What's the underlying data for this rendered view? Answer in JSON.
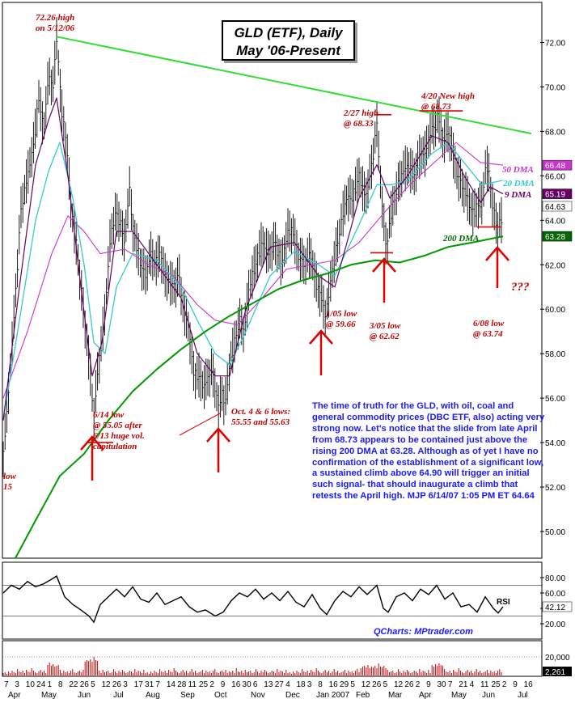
{
  "title_line1": "GLD (ETF), Daily",
  "title_line2": "May '06-Present",
  "annotations": {
    "high_0512": [
      "72.26 high",
      "on 5/12/06"
    ],
    "high_0227": [
      "2/27 high",
      "@ 68.33"
    ],
    "high_0420": [
      "4/20 New high",
      "@ 68.73"
    ],
    "low_0614": [
      "6/14 low",
      "@ 55.05 after",
      "6/13 huge vol.",
      "capitulation"
    ],
    "low_oct": [
      "Oct. 4 & 6 lows:",
      "55.55 and 55.63"
    ],
    "low_0105": [
      "1/05 low",
      "@ 59.66"
    ],
    "low_0305": [
      "3/05 low",
      "@ 62.62"
    ],
    "low_0608": [
      "6/08 low",
      "@ 63.74"
    ],
    "left_cut": [
      "low",
      "15"
    ],
    "question": "???"
  },
  "ma_labels": {
    "dma50": "50 DMA",
    "dma20": "20 DMA",
    "dma9": "9 DMA",
    "dma200": "200 DMA"
  },
  "commentary": "The time of truth for the GLD, with oil, coal and general commodity prices (DBC ETF, also) acting very strong now. Let's notice that the slide from late April from 68.73 appears to be contained just above the rising 200 DMA at 63.28. Although as of yet I have no confirmation of the establishment of a significant low, a sustained climb above 64.90 will trigger an initial such signal- that should inaugurate a climb that retests the April high. MJP 6/14/07 1:05 PM ET 64.64",
  "footer_credit": "QCharts: MPtrader.com",
  "rsi_label": "RSI",
  "chart_data": {
    "type": "line",
    "title": "GLD (ETF), Daily May '06-Present",
    "price_axis": {
      "ylim": [
        48.8,
        73.8
      ],
      "ticks": [
        "50.00",
        "52.00",
        "54.00",
        "56.00",
        "58.00",
        "60.00",
        "62.00",
        "64.00",
        "66.00",
        "68.00",
        "70.00",
        "72.00"
      ]
    },
    "rsi_axis": {
      "ylim": [
        0,
        100
      ],
      "ticks": [
        "20.00",
        "40.00",
        "60.00",
        "80.00"
      ],
      "current": "42.12"
    },
    "volume_axis": {
      "ticks": [
        "20,000"
      ],
      "current": "2,261"
    },
    "price_tags": [
      {
        "value": 66.48,
        "label": "66.48",
        "color": "#cc33cc"
      },
      {
        "value": 65.19,
        "label": "65.19",
        "color": "#660066"
      },
      {
        "value": 64.63,
        "label": "64.63",
        "color": "#ffffff"
      },
      {
        "value": 63.28,
        "label": "63.28",
        "color": "#006600"
      }
    ],
    "x_day_labels": [
      "7",
      "3",
      "10",
      "24",
      "1",
      "8",
      "22",
      "26",
      "5",
      "12",
      "26",
      "3",
      "17",
      "31",
      "7",
      "14",
      "28",
      "11",
      "25",
      "2",
      "9",
      "16",
      "30",
      "6",
      "13",
      "27",
      "4",
      "18",
      "3",
      "8",
      "16",
      "29",
      "5",
      "12",
      "26",
      "5",
      "12",
      "26",
      "2",
      "9",
      "30",
      "7",
      "21",
      "4",
      "11",
      "25",
      "2",
      "9",
      "16"
    ],
    "x_month_labels": [
      "Apr",
      "May",
      "Jun",
      "Jul",
      "Aug",
      "Sep",
      "Oct",
      "Nov",
      "Dec",
      "Jan 2007",
      "Feb",
      "Mar",
      "Apr",
      "May",
      "Jun",
      "Jul"
    ],
    "price_path": [
      [
        0,
        53.5
      ],
      [
        6,
        56
      ],
      [
        14,
        60
      ],
      [
        22,
        64.5
      ],
      [
        30,
        66
      ],
      [
        38,
        67.5
      ],
      [
        44,
        69.5
      ],
      [
        50,
        68
      ],
      [
        56,
        70.5
      ],
      [
        62,
        70
      ],
      [
        66,
        72.26
      ],
      [
        72,
        69
      ],
      [
        78,
        67.5
      ],
      [
        84,
        64.5
      ],
      [
        90,
        63
      ],
      [
        96,
        61
      ],
      [
        102,
        59
      ],
      [
        108,
        57
      ],
      [
        112,
        55.05
      ],
      [
        116,
        57
      ],
      [
        120,
        58
      ],
      [
        126,
        60
      ],
      [
        132,
        63
      ],
      [
        138,
        64.3
      ],
      [
        144,
        64
      ],
      [
        150,
        63
      ],
      [
        156,
        65.5
      ],
      [
        160,
        63.7
      ],
      [
        164,
        63
      ],
      [
        170,
        62
      ],
      [
        176,
        61.5
      ],
      [
        182,
        62.5
      ],
      [
        188,
        62
      ],
      [
        194,
        62.5
      ],
      [
        200,
        61.5
      ],
      [
        206,
        61.2
      ],
      [
        212,
        61
      ],
      [
        218,
        61.5
      ],
      [
        222,
        60
      ],
      [
        228,
        59.5
      ],
      [
        236,
        57
      ],
      [
        242,
        57
      ],
      [
        248,
        56.5
      ],
      [
        254,
        57
      ],
      [
        258,
        57.3
      ],
      [
        262,
        56.5
      ],
      [
        266,
        55.55
      ],
      [
        270,
        56.3
      ],
      [
        274,
        55.63
      ],
      [
        280,
        57.5
      ],
      [
        286,
        58.5
      ],
      [
        292,
        59.5
      ],
      [
        298,
        59
      ],
      [
        304,
        61
      ],
      [
        312,
        62
      ],
      [
        320,
        63
      ],
      [
        328,
        62.5
      ],
      [
        336,
        63
      ],
      [
        344,
        62
      ],
      [
        352,
        63.5
      ],
      [
        358,
        63.5
      ],
      [
        364,
        62.5
      ],
      [
        372,
        62
      ],
      [
        380,
        62.5
      ],
      [
        388,
        61
      ],
      [
        394,
        60.5
      ],
      [
        398,
        59.66
      ],
      [
        402,
        60.5
      ],
      [
        408,
        62
      ],
      [
        416,
        63.5
      ],
      [
        424,
        65
      ],
      [
        432,
        65
      ],
      [
        440,
        66
      ],
      [
        448,
        65
      ],
      [
        456,
        66.5
      ],
      [
        462,
        68.33
      ],
      [
        466,
        66
      ],
      [
        470,
        64
      ],
      [
        474,
        62.62
      ],
      [
        478,
        64
      ],
      [
        484,
        65
      ],
      [
        492,
        66
      ],
      [
        500,
        66.5
      ],
      [
        508,
        66
      ],
      [
        516,
        67
      ],
      [
        522,
        67
      ],
      [
        528,
        68
      ],
      [
        534,
        68.2
      ],
      [
        538,
        68.73
      ],
      [
        544,
        67.5
      ],
      [
        550,
        68
      ],
      [
        556,
        67
      ],
      [
        562,
        66
      ],
      [
        568,
        65.5
      ],
      [
        574,
        65
      ],
      [
        580,
        64.3
      ],
      [
        586,
        64.6
      ],
      [
        592,
        64.8
      ],
      [
        596,
        66.3
      ],
      [
        600,
        66.3
      ],
      [
        604,
        65
      ],
      [
        608,
        64
      ],
      [
        612,
        63.74
      ],
      [
        616,
        64
      ],
      [
        618,
        64.64
      ]
    ],
    "ma9_path": [
      [
        0,
        55
      ],
      [
        20,
        61
      ],
      [
        40,
        66.5
      ],
      [
        56,
        68.5
      ],
      [
        66,
        69.5
      ],
      [
        80,
        66
      ],
      [
        96,
        61
      ],
      [
        110,
        57
      ],
      [
        122,
        58.5
      ],
      [
        140,
        63.5
      ],
      [
        160,
        63.5
      ],
      [
        190,
        62
      ],
      [
        220,
        60.5
      ],
      [
        240,
        58
      ],
      [
        262,
        57
      ],
      [
        280,
        57
      ],
      [
        300,
        60
      ],
      [
        330,
        62.8
      ],
      [
        360,
        63
      ],
      [
        390,
        61.5
      ],
      [
        410,
        61
      ],
      [
        440,
        65
      ],
      [
        462,
        66.5
      ],
      [
        478,
        65
      ],
      [
        500,
        66
      ],
      [
        530,
        67.8
      ],
      [
        550,
        67.5
      ],
      [
        570,
        66
      ],
      [
        590,
        64.8
      ],
      [
        602,
        65.5
      ],
      [
        618,
        65.19
      ]
    ],
    "ma20_path": [
      [
        0,
        55
      ],
      [
        20,
        59.5
      ],
      [
        40,
        64
      ],
      [
        56,
        66.2
      ],
      [
        70,
        67.5
      ],
      [
        86,
        65
      ],
      [
        100,
        62
      ],
      [
        112,
        58.5
      ],
      [
        126,
        58
      ],
      [
        140,
        61
      ],
      [
        160,
        62.5
      ],
      [
        190,
        62.2
      ],
      [
        220,
        61
      ],
      [
        240,
        59.5
      ],
      [
        262,
        58
      ],
      [
        280,
        57.5
      ],
      [
        300,
        59
      ],
      [
        330,
        61.5
      ],
      [
        360,
        62.6
      ],
      [
        390,
        62
      ],
      [
        410,
        61.5
      ],
      [
        440,
        63.8
      ],
      [
        462,
        65.6
      ],
      [
        480,
        65.6
      ],
      [
        500,
        65.8
      ],
      [
        530,
        67
      ],
      [
        550,
        67.5
      ],
      [
        572,
        66.5
      ],
      [
        592,
        65.6
      ],
      [
        618,
        65.8
      ]
    ],
    "ma50_path": [
      [
        0,
        56
      ],
      [
        30,
        59
      ],
      [
        60,
        62.5
      ],
      [
        80,
        64.2
      ],
      [
        100,
        63.5
      ],
      [
        120,
        62.5
      ],
      [
        150,
        62.7
      ],
      [
        180,
        62
      ],
      [
        210,
        61.5
      ],
      [
        240,
        60.2
      ],
      [
        262,
        59.5
      ],
      [
        290,
        59.3
      ],
      [
        320,
        60.5
      ],
      [
        350,
        61.8
      ],
      [
        380,
        62
      ],
      [
        410,
        62.2
      ],
      [
        440,
        63
      ],
      [
        470,
        64.3
      ],
      [
        500,
        65.5
      ],
      [
        530,
        66.5
      ],
      [
        560,
        67.5
      ],
      [
        590,
        66.6
      ],
      [
        618,
        66.48
      ]
    ],
    "ma200_path": [
      [
        15,
        48.8
      ],
      [
        40,
        50.5
      ],
      [
        70,
        52.5
      ],
      [
        100,
        53.5
      ],
      [
        130,
        55
      ],
      [
        160,
        56.3
      ],
      [
        190,
        57.3
      ],
      [
        220,
        58.2
      ],
      [
        250,
        59
      ],
      [
        280,
        59.7
      ],
      [
        310,
        60.3
      ],
      [
        340,
        60.9
      ],
      [
        370,
        61.3
      ],
      [
        400,
        61.6
      ],
      [
        430,
        62
      ],
      [
        460,
        62.2
      ],
      [
        490,
        62.1
      ],
      [
        520,
        62.4
      ],
      [
        550,
        62.8
      ],
      [
        580,
        63
      ],
      [
        618,
        63.28
      ]
    ],
    "trend_line": [
      [
        66,
        72.26
      ],
      [
        653,
        67.9
      ]
    ],
    "rsi_path": [
      [
        0,
        60
      ],
      [
        10,
        70
      ],
      [
        20,
        65
      ],
      [
        30,
        75
      ],
      [
        40,
        68
      ],
      [
        50,
        72
      ],
      [
        60,
        78
      ],
      [
        66,
        82
      ],
      [
        76,
        55
      ],
      [
        86,
        45
      ],
      [
        96,
        38
      ],
      [
        106,
        30
      ],
      [
        112,
        22
      ],
      [
        120,
        45
      ],
      [
        130,
        55
      ],
      [
        140,
        65
      ],
      [
        150,
        55
      ],
      [
        160,
        68
      ],
      [
        170,
        52
      ],
      [
        180,
        48
      ],
      [
        190,
        60
      ],
      [
        200,
        45
      ],
      [
        210,
        50
      ],
      [
        220,
        55
      ],
      [
        230,
        42
      ],
      [
        240,
        35
      ],
      [
        250,
        38
      ],
      [
        262,
        30
      ],
      [
        272,
        35
      ],
      [
        282,
        50
      ],
      [
        292,
        60
      ],
      [
        302,
        55
      ],
      [
        312,
        65
      ],
      [
        322,
        52
      ],
      [
        332,
        60
      ],
      [
        342,
        50
      ],
      [
        352,
        62
      ],
      [
        362,
        48
      ],
      [
        372,
        42
      ],
      [
        382,
        58
      ],
      [
        392,
        40
      ],
      [
        400,
        32
      ],
      [
        410,
        50
      ],
      [
        420,
        62
      ],
      [
        430,
        55
      ],
      [
        440,
        68
      ],
      [
        450,
        58
      ],
      [
        462,
        70
      ],
      [
        470,
        40
      ],
      [
        476,
        35
      ],
      [
        486,
        55
      ],
      [
        496,
        60
      ],
      [
        506,
        50
      ],
      [
        516,
        65
      ],
      [
        526,
        58
      ],
      [
        536,
        70
      ],
      [
        546,
        52
      ],
      [
        556,
        60
      ],
      [
        566,
        42
      ],
      [
        576,
        45
      ],
      [
        586,
        35
      ],
      [
        596,
        55
      ],
      [
        606,
        40
      ],
      [
        612,
        34
      ],
      [
        618,
        42
      ]
    ],
    "volume_base_height": [
      3,
      4,
      2,
      5,
      3,
      6,
      4,
      3,
      8,
      5,
      4,
      6,
      3,
      7,
      5,
      4,
      9,
      6,
      4,
      3,
      5,
      7,
      4,
      6,
      3,
      5,
      8,
      4,
      6,
      3,
      4,
      5,
      7,
      3,
      6,
      4,
      5,
      3,
      6,
      8,
      4,
      3,
      5,
      6,
      4,
      7,
      3,
      5,
      4,
      6,
      3,
      9,
      5,
      4,
      6,
      3,
      7,
      4,
      5,
      6,
      3,
      4,
      8,
      5,
      3,
      6,
      4,
      7,
      5,
      3,
      4,
      6,
      5,
      3,
      8,
      4,
      6,
      5,
      3,
      7
    ]
  }
}
